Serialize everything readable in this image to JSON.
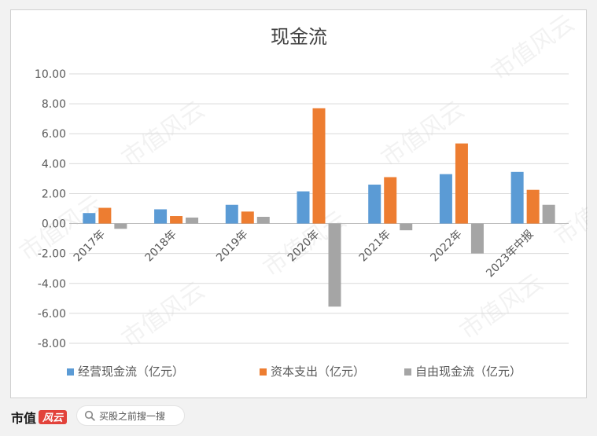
{
  "chart_data": {
    "type": "bar",
    "title": "现金流",
    "categories": [
      "2017年",
      "2018年",
      "2019年",
      "2020年",
      "2021年",
      "2022年",
      "2023年中报"
    ],
    "series": [
      {
        "name": "经营现金流（亿元）",
        "color": "#5b9bd5",
        "values": [
          0.7,
          0.95,
          1.25,
          2.15,
          2.6,
          3.3,
          3.45
        ]
      },
      {
        "name": "资本支出（亿元）",
        "color": "#ed7d31",
        "values": [
          1.05,
          0.5,
          0.8,
          7.7,
          3.1,
          5.35,
          2.25
        ]
      },
      {
        "name": "自由现金流（亿元）",
        "color": "#a5a5a5",
        "values": [
          -0.35,
          0.4,
          0.45,
          -5.55,
          -0.45,
          -2.0,
          1.25
        ]
      }
    ],
    "ylim": [
      -8,
      10
    ],
    "yticks": [
      "10.00",
      "8.00",
      "6.00",
      "4.00",
      "2.00",
      "0.00",
      "-2.00",
      "-4.00",
      "-6.00",
      "-8.00"
    ],
    "ytick_values": [
      10,
      8,
      6,
      4,
      2,
      0,
      -2,
      -4,
      -6,
      -8
    ],
    "grid": true,
    "legend_position": "bottom"
  },
  "watermark": "市值风云",
  "footer": {
    "brand": "市值",
    "logo_text": "风云",
    "search_placeholder": "买股之前搜一搜"
  }
}
